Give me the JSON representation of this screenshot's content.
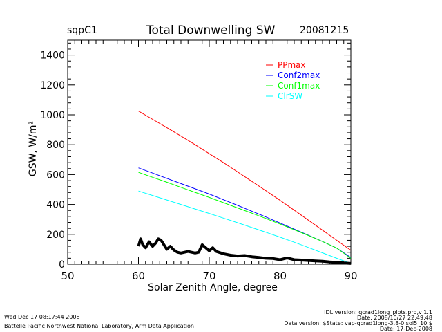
{
  "header": {
    "site": "sqpC1",
    "title": "Total Downwelling SW",
    "date": "20081215"
  },
  "footer": {
    "left": [
      "Wed Dec 17 08:17:44 2008",
      "Battelle Pacific Northwest National Laboratory, Arm Data Application"
    ],
    "right": [
      "IDL version: qcrad1long_plots.pro,v 1.1",
      "Date: 2008/10/27 22:49:48",
      "Data version: $State: vap-qcrad1long-3.8-0.sol5_10 $",
      "Date: 17-Dec-2008"
    ]
  },
  "chart_data": {
    "type": "line",
    "title": "Total Downwelling SW",
    "xlabel": "Solar Zenith Angle, degree",
    "ylabel": "GSW, W/m²",
    "xlim": [
      50,
      90
    ],
    "ylim": [
      0,
      1500
    ],
    "xticks": [
      50,
      60,
      70,
      80,
      90
    ],
    "yticks": [
      0,
      200,
      400,
      600,
      800,
      1000,
      1200,
      1400
    ],
    "x_minor_per_major": 10,
    "y_minor_per_major": 5,
    "grid": false,
    "legend_position": "top-right",
    "series": [
      {
        "name": "PPmax",
        "color": "#ff0000",
        "x": [
          60,
          62,
          64,
          66,
          68,
          70,
          72,
          74,
          76,
          78,
          80,
          82,
          84,
          86,
          88,
          90
        ],
        "y": [
          1025,
          970,
          915,
          858,
          800,
          740,
          680,
          618,
          555,
          492,
          428,
          362,
          295,
          228,
          160,
          93
        ]
      },
      {
        "name": "Conf2max",
        "color": "#0000ff",
        "x": [
          60,
          62,
          64,
          66,
          68,
          70,
          72,
          74,
          76,
          78,
          80,
          82,
          84,
          86,
          88,
          90
        ],
        "y": [
          645,
          610,
          575,
          540,
          505,
          470,
          432,
          394,
          355,
          316,
          276,
          235,
          194,
          152,
          108,
          45
        ]
      },
      {
        "name": "Conf1max",
        "color": "#00ff00",
        "x": [
          60,
          62,
          64,
          66,
          68,
          70,
          72,
          74,
          76,
          78,
          80,
          82,
          84,
          86,
          88,
          90
        ],
        "y": [
          615,
          582,
          549,
          515,
          481,
          447,
          412,
          377,
          342,
          306,
          269,
          231,
          192,
          152,
          108,
          40
        ]
      },
      {
        "name": "ClrSW",
        "color": "#00ffff",
        "x": [
          60,
          62,
          64,
          66,
          68,
          70,
          72,
          74,
          76,
          78,
          80,
          82,
          84,
          86,
          88,
          90
        ],
        "y": [
          490,
          460,
          430,
          400,
          370,
          340,
          309,
          278,
          246,
          214,
          181,
          147,
          112,
          76,
          40,
          5
        ]
      },
      {
        "name": "Observed GSW",
        "color": "#000000",
        "in_legend": false,
        "x": [
          60,
          60.3,
          60.6,
          61,
          61.5,
          62,
          62.4,
          62.8,
          63.2,
          63.6,
          64,
          64.5,
          65,
          65.5,
          66,
          66.5,
          67,
          67.5,
          68,
          68.5,
          69,
          69.5,
          70,
          70.5,
          71,
          72,
          73,
          74,
          75,
          76,
          77,
          78,
          79,
          80,
          81,
          82,
          83,
          84,
          85,
          86,
          87,
          88,
          89,
          90
        ],
        "y": [
          120,
          170,
          130,
          110,
          150,
          120,
          140,
          170,
          160,
          130,
          100,
          120,
          95,
          80,
          75,
          80,
          85,
          80,
          75,
          80,
          130,
          110,
          90,
          110,
          85,
          70,
          60,
          55,
          58,
          50,
          45,
          40,
          38,
          30,
          42,
          30,
          28,
          25,
          22,
          20,
          15,
          12,
          8,
          5
        ]
      }
    ]
  }
}
